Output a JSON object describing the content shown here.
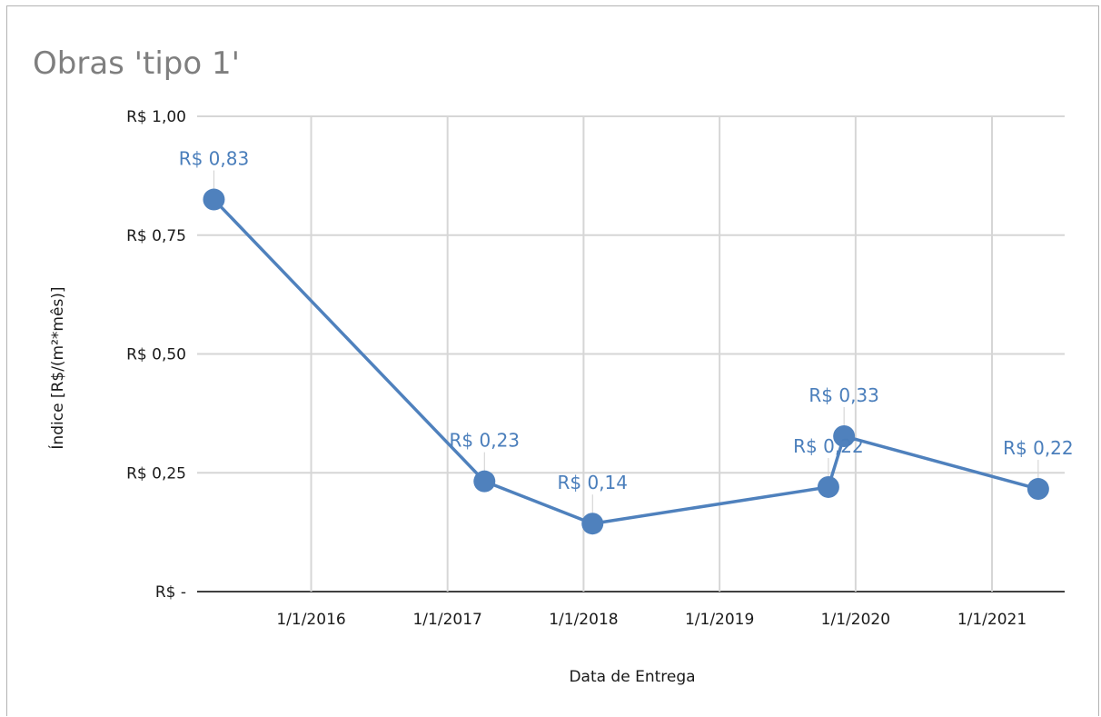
{
  "chart_data": {
    "type": "line",
    "title": "Obras 'tipo 1'",
    "xlabel": "Data de Entrega",
    "ylabel": "Índice [R$/(m²*mês)]",
    "ylim": [
      0,
      1
    ],
    "yticks": [
      {
        "value": 0,
        "label": "R$ -"
      },
      {
        "value": 0.25,
        "label": "R$ 0,25"
      },
      {
        "value": 0.5,
        "label": "R$ 0,50"
      },
      {
        "value": 0.75,
        "label": "R$ 0,75"
      },
      {
        "value": 1,
        "label": "R$ 1,00"
      }
    ],
    "xlim": [
      "2015-03-01",
      "2021-07-15"
    ],
    "xticks": [
      {
        "value": "2016-01-01",
        "label": "1/1/2016"
      },
      {
        "value": "2017-01-01",
        "label": "1/1/2017"
      },
      {
        "value": "2018-01-01",
        "label": "1/1/2018"
      },
      {
        "value": "2019-01-01",
        "label": "1/1/2019"
      },
      {
        "value": "2020-01-01",
        "label": "1/1/2020"
      },
      {
        "value": "2021-01-01",
        "label": "1/1/2021"
      }
    ],
    "grid": true,
    "series": [
      {
        "color": "#4f81bd",
        "points": [
          {
            "x": "2015-04-15",
            "y": 0.825,
            "label": "R$ 0,83"
          },
          {
            "x": "2017-04-10",
            "y": 0.232,
            "label": "R$ 0,23"
          },
          {
            "x": "2018-01-25",
            "y": 0.143,
            "label": "R$ 0,14"
          },
          {
            "x": "2019-10-20",
            "y": 0.22,
            "label": "R$ 0,22"
          },
          {
            "x": "2019-12-01",
            "y": 0.327,
            "label": "R$ 0,33"
          },
          {
            "x": "2021-05-05",
            "y": 0.216,
            "label": "R$ 0,22"
          }
        ]
      }
    ]
  }
}
